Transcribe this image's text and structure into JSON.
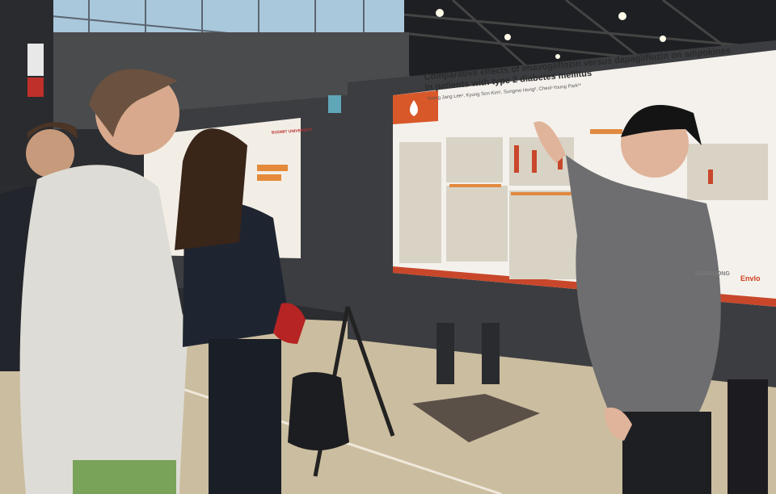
{
  "scene": {
    "description_label": "poster-session-photo"
  },
  "poster": {
    "title_line1": "Comparative effects of enavogliflozin versus dapagliflozin on adipokines",
    "title_line2": "in patients with type 2 diabetes mellitus",
    "authors": "Young Jang Lee¹, Kyung Son Kim¹, Sungmo Hong², Cheol-Young Park¹*",
    "sponsor_1": "DAEWOONG",
    "sponsor_2": "Envlo"
  },
  "side_poster": {
    "logo_text": "BUDMIT UNIVERSITY"
  },
  "colors": {
    "poster_accent": "#c8472a",
    "poster_bg": "#f4f1ec",
    "board": "#3b3d40",
    "floor": "#cbbd9f"
  }
}
